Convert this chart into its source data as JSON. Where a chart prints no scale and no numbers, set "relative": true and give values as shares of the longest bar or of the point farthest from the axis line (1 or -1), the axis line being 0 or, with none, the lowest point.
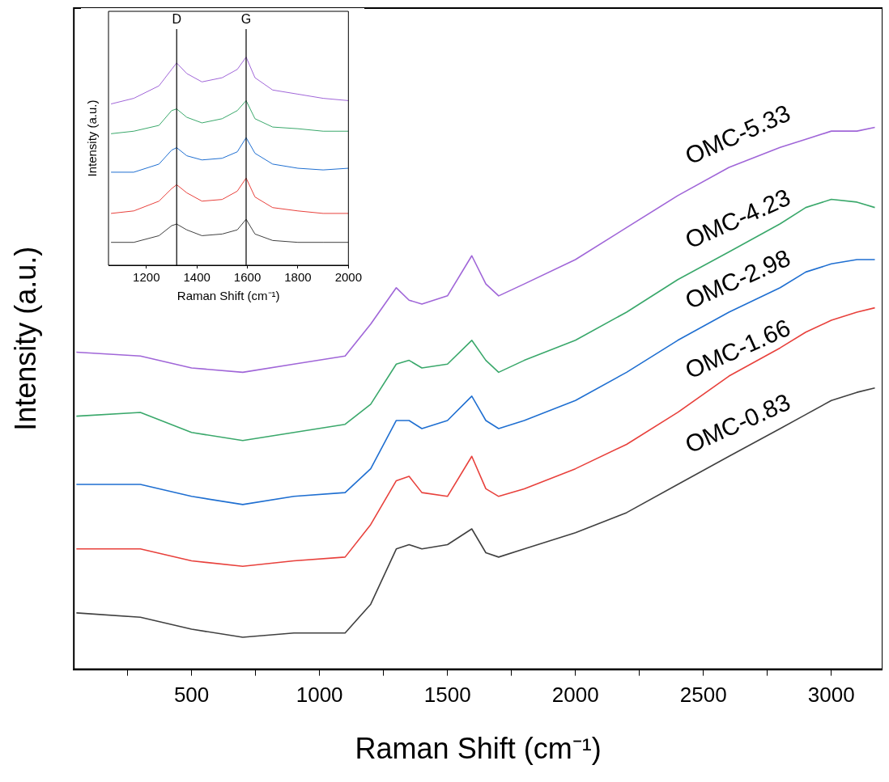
{
  "chart_data": [
    {
      "type": "line",
      "xlabel": "Raman Shift (cm⁻¹)",
      "ylabel": "Intensity (a.u.)",
      "relative": true,
      "tick_labels": "x",
      "marker": "none",
      "xlim": [
        40,
        3200
      ],
      "xticks": [
        {
          "value": 250,
          "label": null
        },
        500,
        {
          "value": 750,
          "label": null
        },
        1000,
        {
          "value": 1250,
          "label": null
        },
        1500,
        {
          "value": 1750,
          "label": null
        },
        2000,
        {
          "value": 2250,
          "label": null
        },
        2500,
        {
          "value": 2750,
          "label": null
        },
        3000
      ],
      "series": [
        {
          "name": "OMC-0.83",
          "color": "#404040",
          "x": [
            50,
            300,
            500,
            700,
            900,
            1100,
            1200,
            1300,
            1350,
            1400,
            1500,
            1595,
            1650,
            1700,
            1800,
            2000,
            2200,
            2400,
            2600,
            2800,
            2900,
            3000,
            3100,
            3170
          ],
          "values": [
            0.104,
            0.096,
            0.074,
            0.059,
            0.067,
            0.067,
            0.12,
            0.222,
            0.23,
            0.222,
            0.23,
            0.259,
            0.215,
            0.207,
            0.222,
            0.252,
            0.289,
            0.341,
            0.393,
            0.444,
            0.47,
            0.496,
            0.511,
            0.519
          ]
        },
        {
          "name": "OMC-1.66",
          "color": "#e8413c",
          "x": [
            50,
            300,
            500,
            700,
            900,
            1100,
            1200,
            1300,
            1350,
            1400,
            1500,
            1595,
            1650,
            1700,
            1800,
            2000,
            2200,
            2400,
            2600,
            2800,
            2900,
            3000,
            3100,
            3170
          ],
          "values": [
            0.222,
            0.222,
            0.2,
            0.19,
            0.2,
            0.207,
            0.267,
            0.348,
            0.356,
            0.326,
            0.319,
            0.393,
            0.333,
            0.319,
            0.333,
            0.37,
            0.415,
            0.474,
            0.541,
            0.593,
            0.622,
            0.644,
            0.659,
            0.667
          ]
        },
        {
          "name": "OMC-2.98",
          "color": "#1f6fd1",
          "x": [
            50,
            300,
            500,
            700,
            900,
            1100,
            1200,
            1300,
            1350,
            1400,
            1500,
            1595,
            1650,
            1700,
            1800,
            2000,
            2200,
            2400,
            2600,
            2800,
            2900,
            3000,
            3100,
            3170
          ],
          "values": [
            0.341,
            0.341,
            0.319,
            0.304,
            0.319,
            0.326,
            0.37,
            0.459,
            0.459,
            0.444,
            0.459,
            0.504,
            0.459,
            0.444,
            0.459,
            0.496,
            0.548,
            0.607,
            0.659,
            0.704,
            0.733,
            0.748,
            0.756,
            0.756
          ]
        },
        {
          "name": "OMC-4.23",
          "color": "#3aa86b",
          "x": [
            50,
            300,
            500,
            700,
            900,
            1100,
            1200,
            1300,
            1350,
            1400,
            1500,
            1595,
            1650,
            1700,
            1800,
            2000,
            2200,
            2400,
            2600,
            2800,
            2900,
            3000,
            3100,
            3170
          ],
          "values": [
            0.467,
            0.474,
            0.437,
            0.422,
            0.437,
            0.452,
            0.489,
            0.563,
            0.57,
            0.556,
            0.563,
            0.607,
            0.57,
            0.548,
            0.57,
            0.607,
            0.659,
            0.719,
            0.77,
            0.822,
            0.852,
            0.867,
            0.862,
            0.852
          ]
        },
        {
          "name": "OMC-5.33",
          "color": "#a066d8",
          "x": [
            50,
            300,
            500,
            700,
            900,
            1100,
            1200,
            1300,
            1350,
            1400,
            1500,
            1595,
            1650,
            1700,
            1800,
            2000,
            2200,
            2400,
            2600,
            2800,
            2900,
            3000,
            3100,
            3170
          ],
          "values": [
            0.585,
            0.578,
            0.556,
            0.548,
            0.563,
            0.578,
            0.637,
            0.704,
            0.681,
            0.674,
            0.689,
            0.763,
            0.711,
            0.689,
            0.711,
            0.756,
            0.815,
            0.874,
            0.926,
            0.963,
            0.978,
            0.993,
            0.993,
            1
          ]
        }
      ]
    },
    {
      "type": "line",
      "xlabel": "Raman Shift (cm⁻¹)",
      "ylabel": "Intensity (a.u.)",
      "relative": true,
      "tick_labels": "x",
      "marker": "none",
      "xlim": [
        1050,
        2000
      ],
      "xticks": [
        1200,
        1400,
        1600,
        1800,
        2000
      ],
      "ref_lines": [
        {
          "axis": "x",
          "value": 1320,
          "label": "D",
          "color": "#000000"
        },
        {
          "axis": "x",
          "value": 1595,
          "label": "G",
          "color": "#000000"
        }
      ],
      "series": [
        {
          "color": "#404040",
          "x": [
            1060,
            1150,
            1250,
            1300,
            1320,
            1360,
            1420,
            1500,
            1560,
            1595,
            1630,
            1700,
            1800,
            1900,
            2000
          ],
          "values": [
            0.11,
            0.11,
            0.142,
            0.19,
            0.198,
            0.17,
            0.142,
            0.15,
            0.17,
            0.221,
            0.15,
            0.119,
            0.11,
            0.11,
            0.11
          ]
        },
        {
          "color": "#e8413c",
          "x": [
            1060,
            1150,
            1250,
            1300,
            1320,
            1360,
            1420,
            1500,
            1560,
            1595,
            1630,
            1700,
            1800,
            1900,
            2000
          ],
          "values": [
            0.249,
            0.261,
            0.308,
            0.368,
            0.387,
            0.348,
            0.308,
            0.316,
            0.356,
            0.419,
            0.328,
            0.277,
            0.261,
            0.249,
            0.249
          ]
        },
        {
          "color": "#1f6fd1",
          "x": [
            1060,
            1150,
            1250,
            1300,
            1320,
            1360,
            1420,
            1500,
            1560,
            1595,
            1630,
            1700,
            1800,
            1900,
            2000
          ],
          "values": [
            0.447,
            0.447,
            0.486,
            0.553,
            0.565,
            0.526,
            0.506,
            0.514,
            0.545,
            0.613,
            0.538,
            0.486,
            0.466,
            0.458,
            0.466
          ]
        },
        {
          "color": "#3aa86b",
          "x": [
            1060,
            1150,
            1250,
            1300,
            1320,
            1360,
            1420,
            1500,
            1560,
            1595,
            1630,
            1700,
            1800,
            1900,
            2000
          ],
          "values": [
            0.632,
            0.644,
            0.672,
            0.743,
            0.751,
            0.711,
            0.684,
            0.704,
            0.743,
            0.791,
            0.704,
            0.664,
            0.656,
            0.644,
            0.644
          ]
        },
        {
          "color": "#a066d8",
          "x": [
            1060,
            1150,
            1250,
            1300,
            1320,
            1360,
            1420,
            1500,
            1560,
            1595,
            1630,
            1700,
            1800,
            1900,
            2000
          ],
          "values": [
            0.775,
            0.802,
            0.862,
            0.941,
            0.972,
            0.921,
            0.881,
            0.901,
            0.941,
            1,
            0.901,
            0.842,
            0.822,
            0.802,
            0.791
          ]
        }
      ]
    }
  ]
}
